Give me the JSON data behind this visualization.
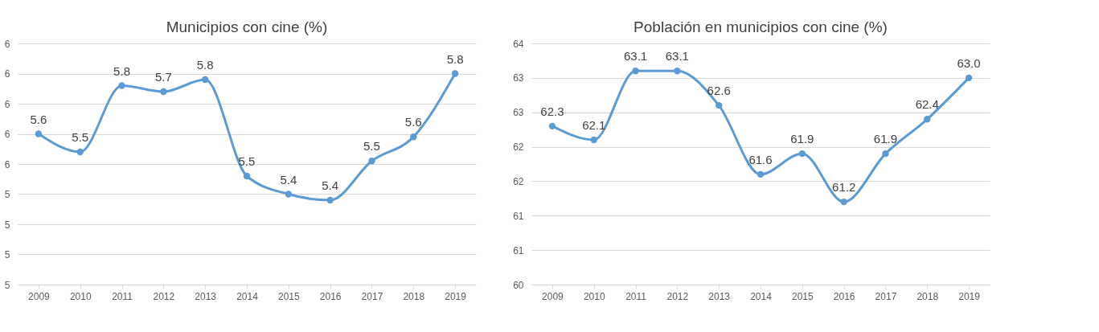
{
  "chart_data": [
    {
      "type": "line",
      "title": "Municipios con cine (%)",
      "categories": [
        "2009",
        "2010",
        "2011",
        "2012",
        "2013",
        "2014",
        "2015",
        "2016",
        "2017",
        "2018",
        "2019"
      ],
      "series": [
        {
          "color": "#5b9bd5",
          "values": [
            5.6,
            5.54,
            5.76,
            5.74,
            5.78,
            5.46,
            5.4,
            5.38,
            5.51,
            5.59,
            5.8
          ],
          "value_labels": [
            "5.6",
            "5.5",
            "5.8",
            "5.7",
            "5.8",
            "5.5",
            "5.4",
            "5.4",
            "5.5",
            "5.6",
            "5.8"
          ]
        }
      ],
      "ylim": [
        5.1,
        5.9
      ],
      "yticks": [
        {
          "value": 5.1,
          "label": "5"
        },
        {
          "value": 5.2,
          "label": "5"
        },
        {
          "value": 5.3,
          "label": "5"
        },
        {
          "value": 5.4,
          "label": "5"
        },
        {
          "value": 5.5,
          "label": "6"
        },
        {
          "value": 5.6,
          "label": "6"
        },
        {
          "value": 5.7,
          "label": "6"
        },
        {
          "value": 5.8,
          "label": "6"
        },
        {
          "value": 5.9,
          "label": "6"
        }
      ],
      "grid": "y",
      "marker": "circle",
      "line_style": "solid"
    },
    {
      "type": "line",
      "title": "Población en municipios con cine (%)",
      "categories": [
        "2009",
        "2010",
        "2011",
        "2012",
        "2013",
        "2014",
        "2015",
        "2016",
        "2017",
        "2018",
        "2019"
      ],
      "series": [
        {
          "color": "#5b9bd5",
          "values": [
            62.3,
            62.1,
            63.1,
            63.1,
            62.6,
            61.6,
            61.9,
            61.2,
            61.9,
            62.4,
            63.0
          ],
          "value_labels": [
            "62.3",
            "62.1",
            "63.1",
            "63.1",
            "62.6",
            "61.6",
            "61.9",
            "61.2",
            "61.9",
            "62.4",
            "63.0"
          ]
        }
      ],
      "ylim": [
        60,
        63.5
      ],
      "yticks": [
        60,
        {
          "value": 60.5,
          "label": "61"
        },
        61,
        {
          "value": 61.5,
          "label": "62"
        },
        62,
        {
          "value": 62.5,
          "label": "63"
        },
        63,
        {
          "value": 63.5,
          "label": "64"
        }
      ],
      "grid": "y",
      "marker": "circle",
      "line_style": "solid"
    }
  ]
}
